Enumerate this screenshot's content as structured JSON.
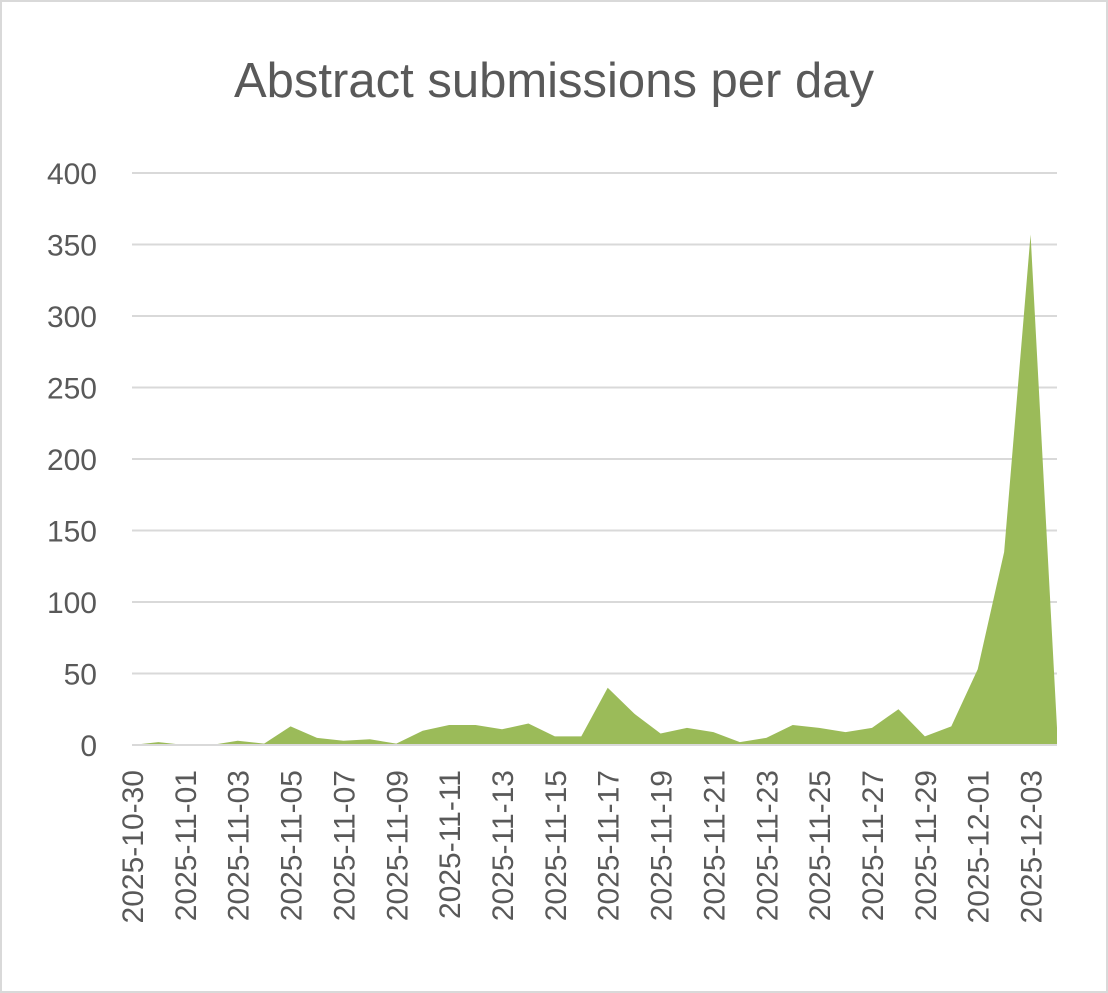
{
  "chart_data": {
    "type": "area",
    "title": "Abstract submissions per day",
    "xlabel": "",
    "ylabel": "",
    "ylim": [
      0,
      400
    ],
    "yticks": [
      0,
      50,
      100,
      150,
      200,
      250,
      300,
      350,
      400
    ],
    "x_tick_labels": [
      "2025-10-30",
      "2025-11-01",
      "2025-11-03",
      "2025-11-05",
      "2025-11-07",
      "2025-11-09",
      "2025-11-11",
      "2025-11-13",
      "2025-11-15",
      "2025-11-17",
      "2025-11-19",
      "2025-11-21",
      "2025-11-23",
      "2025-11-25",
      "2025-11-27",
      "2025-11-29",
      "2025-12-01",
      "2025-12-03"
    ],
    "grid": true,
    "legend": "none",
    "color": "#9bbb59",
    "categories": [
      "2025-10-30",
      "2025-10-31",
      "2025-11-01",
      "2025-11-02",
      "2025-11-03",
      "2025-11-04",
      "2025-11-05",
      "2025-11-06",
      "2025-11-07",
      "2025-11-08",
      "2025-11-09",
      "2025-11-10",
      "2025-11-11",
      "2025-11-12",
      "2025-11-13",
      "2025-11-14",
      "2025-11-15",
      "2025-11-16",
      "2025-11-17",
      "2025-11-18",
      "2025-11-19",
      "2025-11-20",
      "2025-11-21",
      "2025-11-22",
      "2025-11-23",
      "2025-11-24",
      "2025-11-25",
      "2025-11-26",
      "2025-11-27",
      "2025-11-28",
      "2025-11-29",
      "2025-11-30",
      "2025-12-01",
      "2025-12-02",
      "2025-12-03",
      "2025-12-04"
    ],
    "values": [
      0,
      2,
      0,
      0,
      3,
      1,
      13,
      5,
      3,
      4,
      1,
      10,
      14,
      14,
      11,
      15,
      6,
      6,
      40,
      22,
      8,
      12,
      9,
      2,
      5,
      14,
      12,
      9,
      12,
      25,
      6,
      13,
      53,
      135,
      357,
      12
    ]
  }
}
